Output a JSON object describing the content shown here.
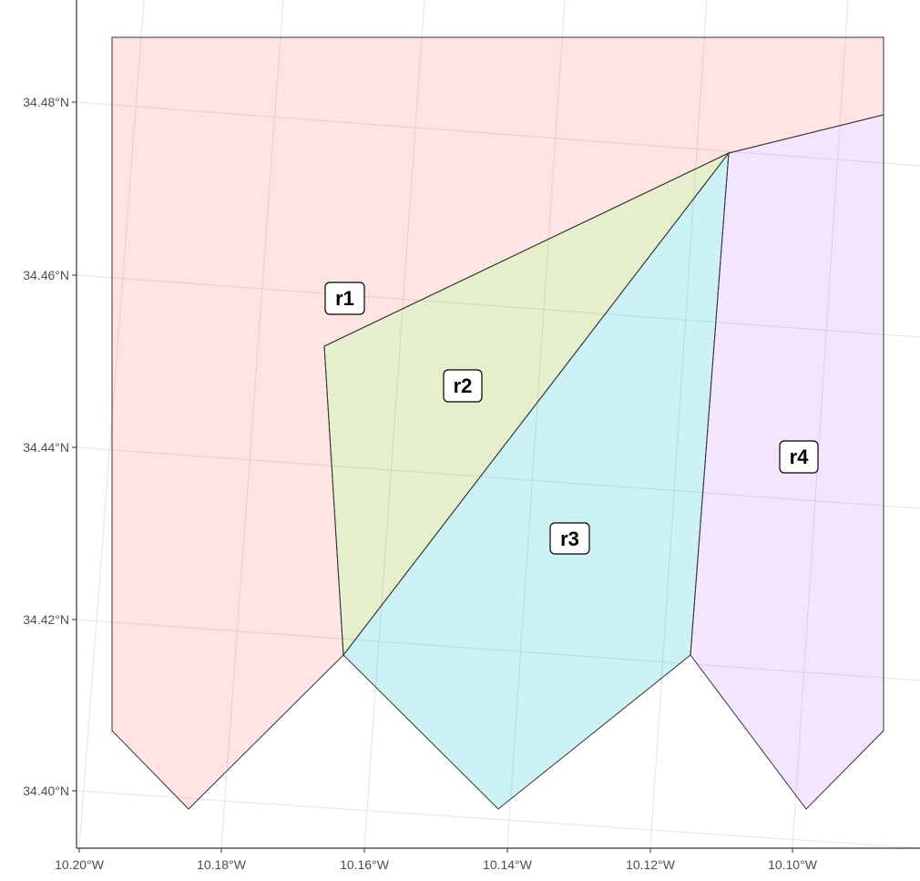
{
  "map": {
    "axis": {
      "x_ticks": [
        "10.20°W",
        "10.18°W",
        "10.16°W",
        "10.14°W",
        "10.12°W",
        "10.10°W"
      ],
      "y_ticks": [
        "34.48°N",
        "34.46°N",
        "34.44°N",
        "34.42°N",
        "34.40°N"
      ]
    },
    "regions": [
      {
        "id": "r1",
        "label": "r1",
        "color": "#f8766d"
      },
      {
        "id": "r2",
        "label": "r2",
        "color": "#7cae00"
      },
      {
        "id": "r3",
        "label": "r3",
        "color": "#00bfc4"
      },
      {
        "id": "r4",
        "label": "r4",
        "color": "#c77cff"
      }
    ]
  }
}
